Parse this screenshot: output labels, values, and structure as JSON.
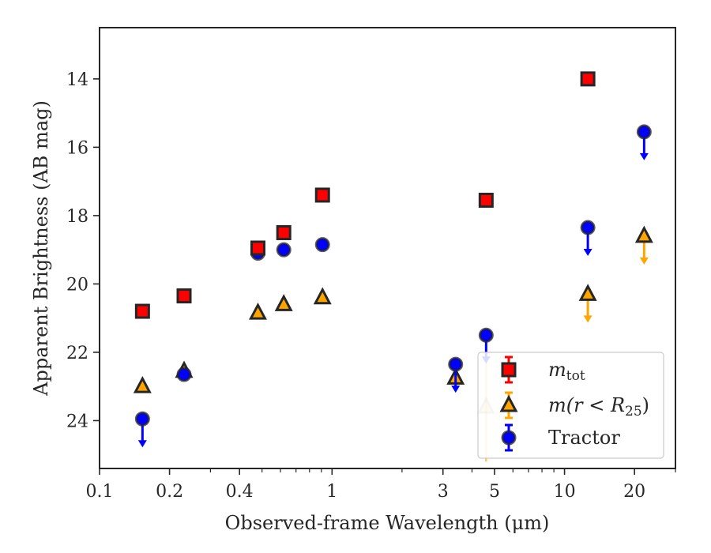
{
  "chart_data": {
    "type": "scatter",
    "title": "",
    "xlabel": "Observed-frame Wavelength (μm)",
    "ylabel": "Apparent Brightness (AB mag)",
    "x_scale": "log",
    "xlim": [
      0.1,
      30
    ],
    "ylim": [
      25.4,
      12.5
    ],
    "y_inverted": true,
    "x_tick_labels": [
      {
        "value": 0.1,
        "label": "0.1"
      },
      {
        "value": 0.2,
        "label": "0.2"
      },
      {
        "value": 0.4,
        "label": "0.4"
      },
      {
        "value": 1,
        "label": "1"
      },
      {
        "value": 3,
        "label": "3"
      },
      {
        "value": 5,
        "label": "5"
      },
      {
        "value": 10,
        "label": "10"
      },
      {
        "value": 20,
        "label": "20"
      }
    ],
    "x_minor_ticks": [
      0.3,
      0.5,
      0.6,
      0.7,
      0.8,
      0.9,
      2,
      4,
      6,
      7,
      8,
      9,
      30
    ],
    "y_ticks": [
      14,
      16,
      18,
      20,
      22,
      24
    ],
    "grid": false,
    "legend_position": "bottom-right",
    "legend": [
      {
        "main": "m",
        "sub": "tot",
        "rest": "",
        "marker": "square",
        "color": "#ff0000"
      },
      {
        "main": "m(r < R",
        "sub": "25",
        "rest": ")",
        "marker": "triangle",
        "color": "#ffa500"
      },
      {
        "main": "Tractor",
        "sub": "",
        "rest": "",
        "marker": "circle",
        "color": "#0000ff"
      }
    ],
    "series": [
      {
        "marker": "square",
        "color": "#ff0000",
        "points": [
          {
            "x": 0.153,
            "y": 20.8
          },
          {
            "x": 0.231,
            "y": 20.35
          },
          {
            "x": 0.48,
            "y": 18.95
          },
          {
            "x": 0.62,
            "y": 18.5
          },
          {
            "x": 0.91,
            "y": 17.4
          },
          {
            "x": 4.6,
            "y": 17.55
          },
          {
            "x": 12.6,
            "y": 14.0
          }
        ]
      },
      {
        "marker": "triangle",
        "color": "#ffa500",
        "points": [
          {
            "x": 0.153,
            "y": 23.0,
            "upper_limit": false
          },
          {
            "x": 0.231,
            "y": 22.55,
            "upper_limit": false
          },
          {
            "x": 0.48,
            "y": 20.85,
            "upper_limit": false
          },
          {
            "x": 0.62,
            "y": 20.6,
            "upper_limit": false
          },
          {
            "x": 0.91,
            "y": 20.4,
            "upper_limit": false
          },
          {
            "x": 3.4,
            "y": 22.75,
            "upper_limit": false
          },
          {
            "x": 4.6,
            "y": 23.6,
            "upper_limit": false,
            "faded": true,
            "yerr": 1.6
          },
          {
            "x": 12.6,
            "y": 20.3,
            "upper_limit": true
          },
          {
            "x": 22.0,
            "y": 18.6,
            "upper_limit": true
          }
        ]
      },
      {
        "marker": "circle",
        "color": "#0000ff",
        "points": [
          {
            "x": 0.153,
            "y": 23.95,
            "upper_limit": true
          },
          {
            "x": 0.231,
            "y": 22.65,
            "upper_limit": false
          },
          {
            "x": 0.48,
            "y": 19.1,
            "upper_limit": false
          },
          {
            "x": 0.62,
            "y": 19.0,
            "upper_limit": false
          },
          {
            "x": 0.91,
            "y": 18.85,
            "upper_limit": false
          },
          {
            "x": 3.4,
            "y": 22.35,
            "upper_limit": true
          },
          {
            "x": 4.6,
            "y": 21.5,
            "upper_limit": true
          },
          {
            "x": 12.6,
            "y": 18.35,
            "upper_limit": true
          },
          {
            "x": 22.0,
            "y": 15.55,
            "upper_limit": true
          }
        ]
      }
    ]
  }
}
